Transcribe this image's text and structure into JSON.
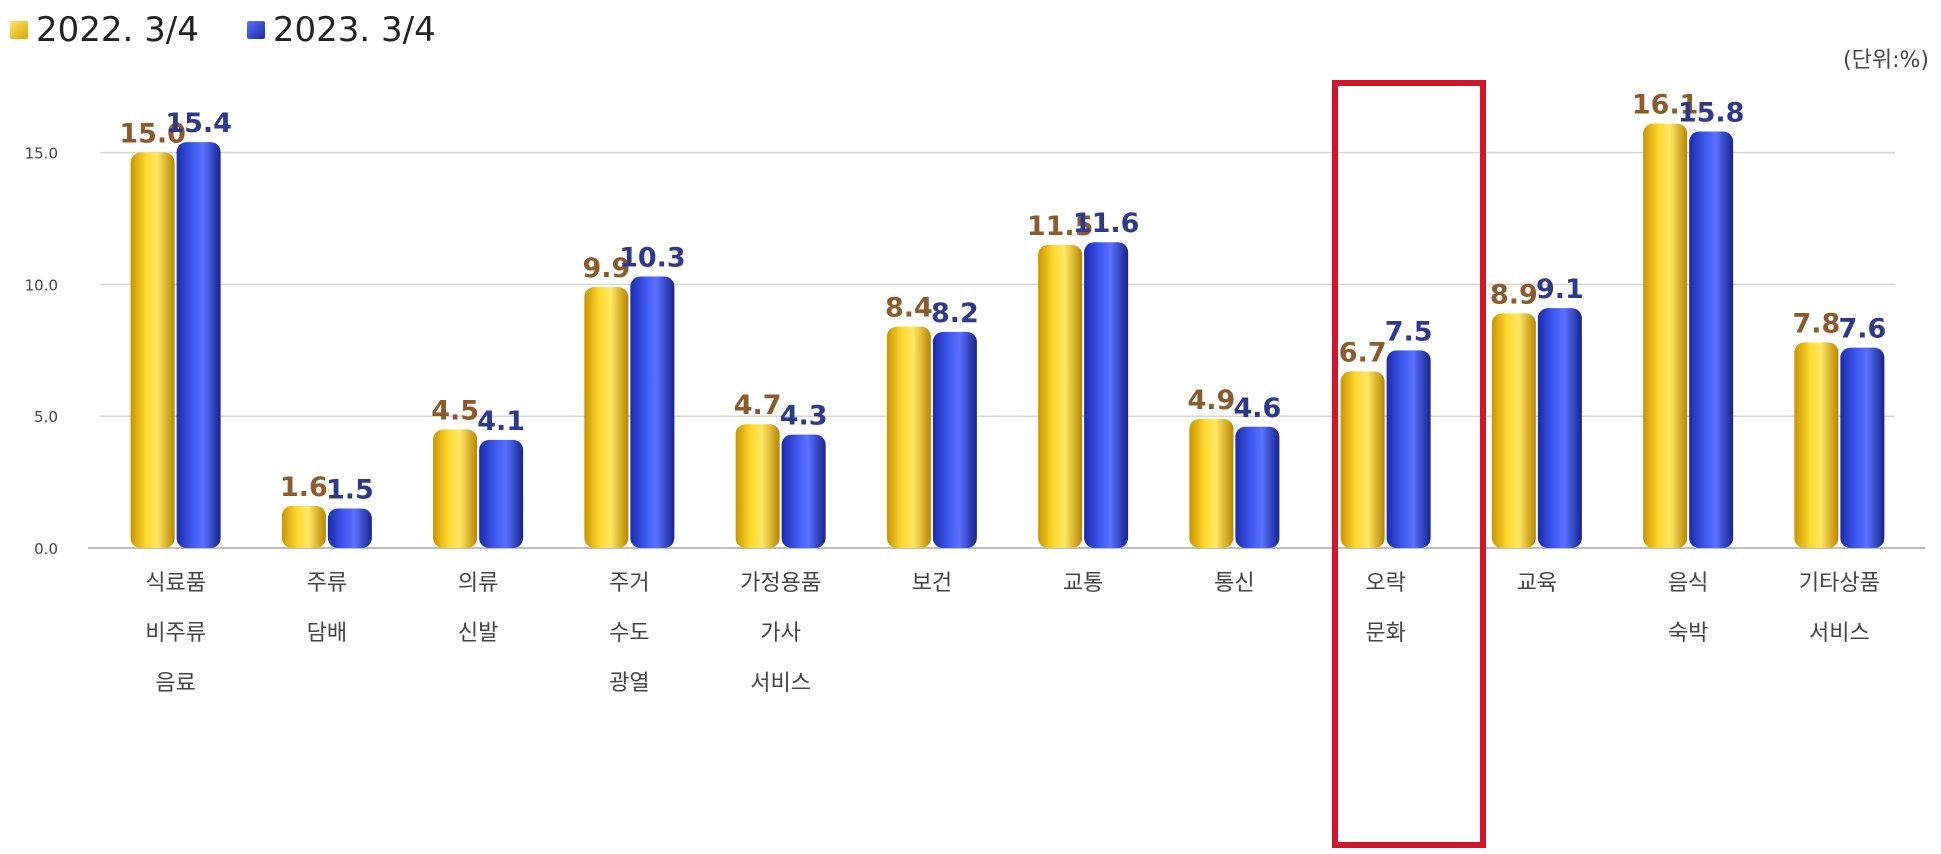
{
  "legend": [
    {
      "label": "2022. 3/4",
      "color": "#f2c200"
    },
    {
      "label": "2023. 3/4",
      "color": "#2b43d9"
    }
  ],
  "unit_label": "(단위:%)",
  "chart_data": {
    "type": "bar",
    "categories": [
      [
        "식료품",
        "비주류",
        "음료"
      ],
      [
        "주류",
        "담배"
      ],
      [
        "의류",
        "신발"
      ],
      [
        "주거",
        "수도",
        "광열"
      ],
      [
        "가정용품",
        "가사",
        "서비스"
      ],
      [
        "보건"
      ],
      [
        "교통"
      ],
      [
        "통신"
      ],
      [
        "오락",
        "문화"
      ],
      [
        "교육"
      ],
      [
        "음식",
        "숙박"
      ],
      [
        "기타상품",
        "서비스"
      ]
    ],
    "series": [
      {
        "name": "2022. 3/4",
        "values": [
          15.0,
          1.6,
          4.5,
          9.9,
          4.7,
          8.4,
          11.5,
          4.9,
          6.7,
          8.9,
          16.1,
          7.8
        ],
        "labels": [
          "15.0",
          "1.6",
          "4.5",
          "9.9",
          "4.7",
          "8.4",
          "11.5",
          "4.9",
          "6.7",
          "8.9",
          "16.1",
          "7.8"
        ],
        "color": "#f2c200",
        "label_color": "#8c5a2b"
      },
      {
        "name": "2023. 3/4",
        "values": [
          15.4,
          1.5,
          4.1,
          10.3,
          4.3,
          8.2,
          11.6,
          4.6,
          7.5,
          9.1,
          15.8,
          7.6
        ],
        "labels": [
          "15.4",
          "1.5",
          "4.1",
          "10.3",
          "4.3",
          "8.2",
          "11.6",
          "4.6",
          "7.5",
          "9.1",
          "15.8",
          "7.6"
        ],
        "color": "#2b43d9",
        "label_color": "#2d3a8c"
      }
    ],
    "y_ticks": [
      "0.0",
      "5.0",
      "10.0",
      "15.0"
    ],
    "y_tick_values": [
      0,
      5,
      10,
      15
    ],
    "ylim": [
      0,
      17.5
    ],
    "grid": true,
    "highlighted_category": "오락 문화"
  }
}
